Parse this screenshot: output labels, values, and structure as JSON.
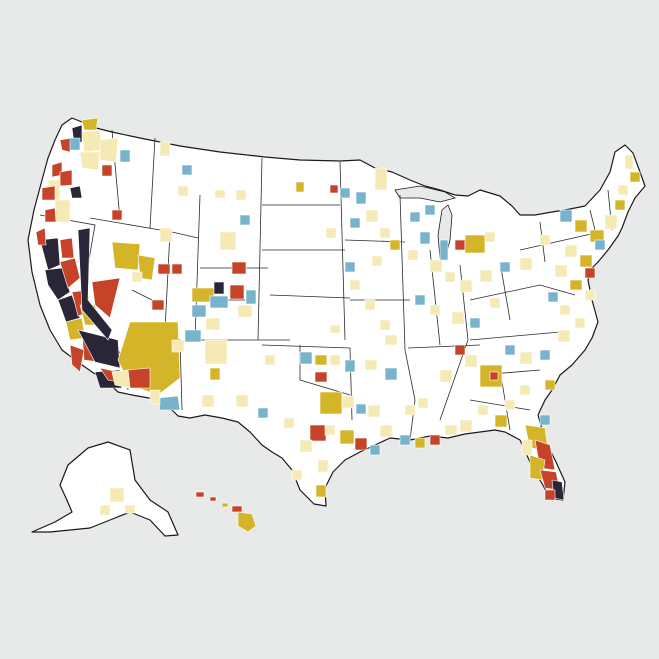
{
  "map": {
    "category_colors": {
      "c1": "#f6eab4",
      "c2": "#d4b52a",
      "c3": "#c6432a",
      "c4": "#2b2538",
      "c5": "#78b3cc"
    },
    "background_color": "#e8eae9",
    "land_color": "#ffffff",
    "border_color": "#1a1a1a"
  }
}
